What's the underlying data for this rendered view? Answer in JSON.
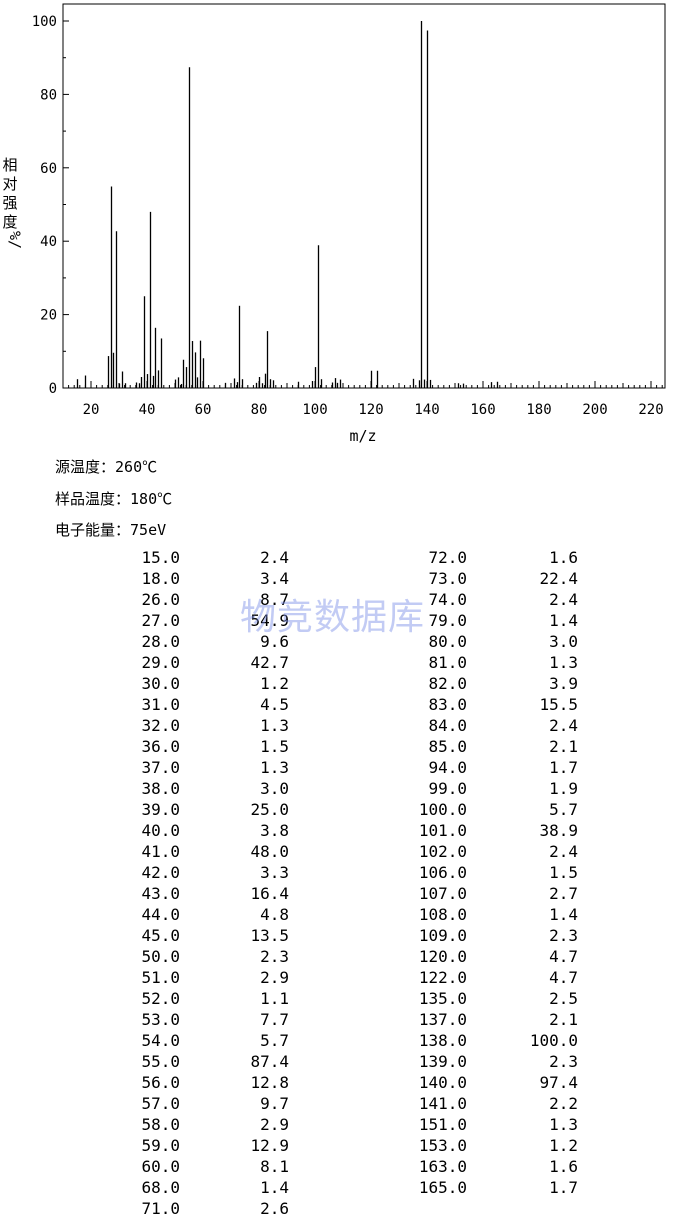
{
  "chart_data": {
    "type": "bar",
    "xlabel": "m/z",
    "ylabel": "相对强度 %/",
    "xlim": [
      10,
      225
    ],
    "ylim": [
      0,
      100
    ],
    "xticks": [
      20,
      40,
      60,
      80,
      100,
      120,
      140,
      160,
      180,
      200,
      220
    ],
    "yticks": [
      0,
      20,
      40,
      60,
      80,
      100
    ],
    "x": [
      15,
      18,
      26,
      27,
      28,
      29,
      30,
      31,
      32,
      36,
      37,
      38,
      39,
      40,
      41,
      42,
      43,
      44,
      45,
      50,
      51,
      52,
      53,
      54,
      55,
      56,
      57,
      58,
      59,
      60,
      68,
      71,
      72,
      73,
      74,
      79,
      80,
      81,
      82,
      83,
      84,
      85,
      94,
      99,
      100,
      101,
      102,
      106,
      107,
      108,
      109,
      120,
      122,
      135,
      137,
      138,
      139,
      140,
      141,
      151,
      153,
      163,
      165
    ],
    "values": [
      2.4,
      3.4,
      8.7,
      54.9,
      9.6,
      42.7,
      1.2,
      4.5,
      1.3,
      1.5,
      1.3,
      3.0,
      25.0,
      3.8,
      48.0,
      3.3,
      16.4,
      4.8,
      13.5,
      2.3,
      2.9,
      1.1,
      7.7,
      5.7,
      87.4,
      12.8,
      9.7,
      2.9,
      12.9,
      8.1,
      1.4,
      2.6,
      1.6,
      22.4,
      2.4,
      1.4,
      3.0,
      1.3,
      3.9,
      15.5,
      2.4,
      2.1,
      1.7,
      1.9,
      5.7,
      38.9,
      2.4,
      1.5,
      2.7,
      1.4,
      2.3,
      4.7,
      4.7,
      2.5,
      2.1,
      100.0,
      2.3,
      97.4,
      2.2,
      1.3,
      1.2,
      1.6,
      1.7
    ]
  },
  "conditions": {
    "source_temp_label": "源温度：",
    "source_temp_value": "260℃",
    "sample_temp_label": "样品温度：",
    "sample_temp_value": "180℃",
    "energy_label": "电子能量：",
    "energy_value": "75eV"
  },
  "table": {
    "left": [
      [
        "15.0",
        "2.4"
      ],
      [
        "18.0",
        "3.4"
      ],
      [
        "26.0",
        "8.7"
      ],
      [
        "27.0",
        "54.9"
      ],
      [
        "28.0",
        "9.6"
      ],
      [
        "29.0",
        "42.7"
      ],
      [
        "30.0",
        "1.2"
      ],
      [
        "31.0",
        "4.5"
      ],
      [
        "32.0",
        "1.3"
      ],
      [
        "36.0",
        "1.5"
      ],
      [
        "37.0",
        "1.3"
      ],
      [
        "38.0",
        "3.0"
      ],
      [
        "39.0",
        "25.0"
      ],
      [
        "40.0",
        "3.8"
      ],
      [
        "41.0",
        "48.0"
      ],
      [
        "42.0",
        "3.3"
      ],
      [
        "43.0",
        "16.4"
      ],
      [
        "44.0",
        "4.8"
      ],
      [
        "45.0",
        "13.5"
      ],
      [
        "50.0",
        "2.3"
      ],
      [
        "51.0",
        "2.9"
      ],
      [
        "52.0",
        "1.1"
      ],
      [
        "53.0",
        "7.7"
      ],
      [
        "54.0",
        "5.7"
      ],
      [
        "55.0",
        "87.4"
      ],
      [
        "56.0",
        "12.8"
      ],
      [
        "57.0",
        "9.7"
      ],
      [
        "58.0",
        "2.9"
      ],
      [
        "59.0",
        "12.9"
      ],
      [
        "60.0",
        "8.1"
      ],
      [
        "68.0",
        "1.4"
      ],
      [
        "71.0",
        "2.6"
      ]
    ],
    "right": [
      [
        "72.0",
        "1.6"
      ],
      [
        "73.0",
        "22.4"
      ],
      [
        "74.0",
        "2.4"
      ],
      [
        "79.0",
        "1.4"
      ],
      [
        "80.0",
        "3.0"
      ],
      [
        "81.0",
        "1.3"
      ],
      [
        "82.0",
        "3.9"
      ],
      [
        "83.0",
        "15.5"
      ],
      [
        "84.0",
        "2.4"
      ],
      [
        "85.0",
        "2.1"
      ],
      [
        "94.0",
        "1.7"
      ],
      [
        "99.0",
        "1.9"
      ],
      [
        "100.0",
        "5.7"
      ],
      [
        "101.0",
        "38.9"
      ],
      [
        "102.0",
        "2.4"
      ],
      [
        "106.0",
        "1.5"
      ],
      [
        "107.0",
        "2.7"
      ],
      [
        "108.0",
        "1.4"
      ],
      [
        "109.0",
        "2.3"
      ],
      [
        "120.0",
        "4.7"
      ],
      [
        "122.0",
        "4.7"
      ],
      [
        "135.0",
        "2.5"
      ],
      [
        "137.0",
        "2.1"
      ],
      [
        "138.0",
        "100.0"
      ],
      [
        "139.0",
        "2.3"
      ],
      [
        "140.0",
        "97.4"
      ],
      [
        "141.0",
        "2.2"
      ],
      [
        "151.0",
        "1.3"
      ],
      [
        "153.0",
        "1.2"
      ],
      [
        "163.0",
        "1.6"
      ],
      [
        "165.0",
        "1.7"
      ]
    ]
  },
  "watermark": "物竞数据库"
}
